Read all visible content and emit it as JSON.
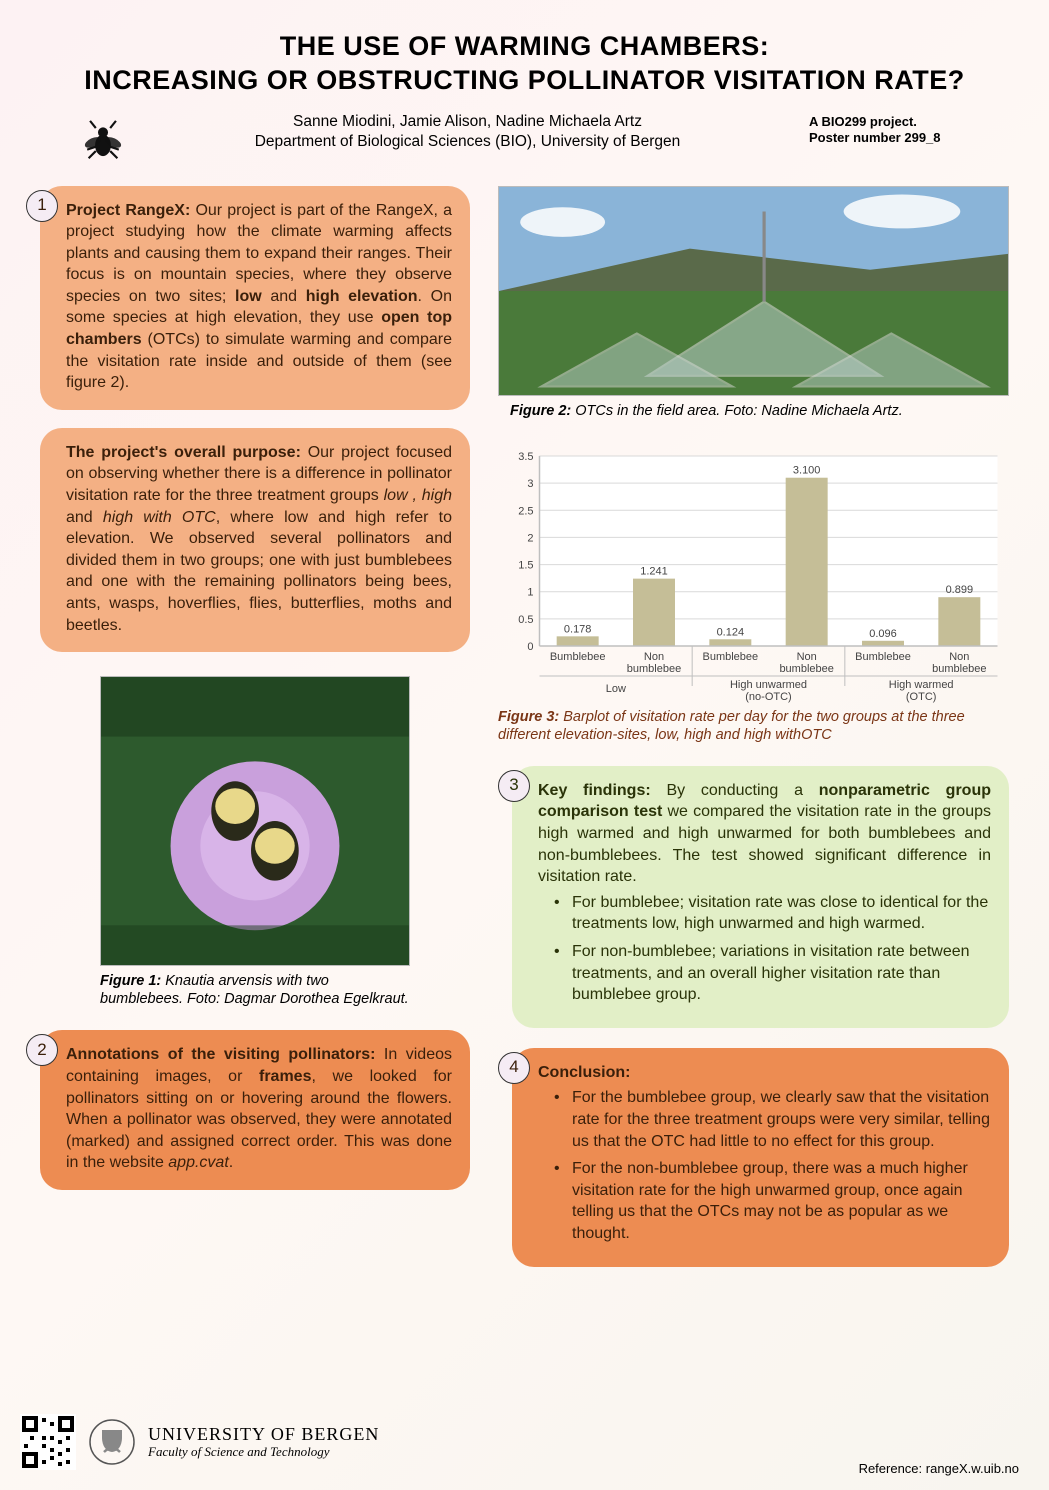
{
  "title_line1": "THE USE OF WARMING CHAMBERS:",
  "title_line2": "INCREASING OR OBSTRUCTING POLLINATOR VISITATION RATE?",
  "authors_line1": "Sanne Miodini,  Jamie Alison, Nadine Michaela Artz",
  "authors_line2": "Department of Biological Sciences (BIO), University of Bergen",
  "meta_line1": "A BIO299 project.",
  "meta_line2": "Poster number 299_8",
  "box1": {
    "num": "1",
    "heading": "Project RangeX:",
    "body": "Our project is part of the RangeX, a project studying how the climate warming affects plants and causing them to expand their ranges. Their focus is on mountain species, where they observe species on two sites; low and high elevation. On some species at high elevation, they use open top chambers (OTCs) to simulate warming and compare the visitation rate inside and outside of them (see figure 2)."
  },
  "box_purpose": {
    "heading": "The project's overall purpose:",
    "body": "Our project focused on observing whether there is a difference in pollinator visitation rate for the three treatment groups low , high and high with OTC, where low and high refer to elevation. We observed several pollinators and divided them in two groups; one with just bumblebees and one with the remaining pollinators being bees, ants, wasps, hoverflies, flies, butterflies, moths and beetles."
  },
  "fig1_caption_b": "Figure 1:",
  "fig1_caption": " Knautia arvensis with two bumblebees. Foto: Dagmar Dorothea Egelkraut.",
  "box2": {
    "num": "2",
    "heading": "Annotations of the visiting pollinators:",
    "body": "In videos containing  images, or frames, we looked for pollinators sitting on or hovering around the flowers. When a pollinator was observed, they were annotated (marked) and assigned correct order. This was done in the website app.cvat."
  },
  "fig2_caption_b": "Figure 2:",
  "fig2_caption": " OTCs in the field area. Foto: Nadine Michaela Artz.",
  "barplot": {
    "type": "bar",
    "ylim": [
      0,
      3.5
    ],
    "ytick_step": 0.5,
    "yticks": [
      "0",
      "0.5",
      "1",
      "1.5",
      "2",
      "2.5",
      "3",
      "3.5"
    ],
    "bar_color": "#c5be97",
    "grid_color": "#d9d9d9",
    "axis_color": "#bfbfbf",
    "background_color": "#ffffff",
    "label_fontsize": 11,
    "groups": [
      {
        "label": "Low",
        "bars": [
          {
            "label": "Bumblebee",
            "value": 0.178
          },
          {
            "label": "Non bumblebee",
            "value": 1.241
          }
        ]
      },
      {
        "label": "High unwarmed (no-OTC)",
        "bars": [
          {
            "label": "Bumblebee",
            "value": 0.124
          },
          {
            "label": "Non bumblebee",
            "value": 3.1
          }
        ]
      },
      {
        "label": "High warmed (OTC)",
        "bars": [
          {
            "label": "Bumblebee",
            "value": 0.096
          },
          {
            "label": "Non bumblebee",
            "value": 0.899
          }
        ]
      }
    ]
  },
  "fig3_caption_b": "Figure 3:",
  "fig3_caption": "  Barplot of visitation rate per day for the two groups at the three different elevation-sites, low, high and high withOTC",
  "box3": {
    "num": "3",
    "heading": "Key findings:",
    "intro": "By conducting a nonparametric group comparison test we compared the visitation rate in the groups high warmed and high unwarmed for both bumblebees and non-bumblebees. The test showed significant difference in visitation rate.",
    "bullets": [
      "For bumblebee; visitation rate was close to identical for the treatments low, high unwarmed and high warmed.",
      "For non-bumblebee; variations in visitation rate between treatments, and an overall higher visitation rate than bumblebee group."
    ]
  },
  "box4": {
    "num": "4",
    "heading": "Conclusion:",
    "bullets": [
      "For the bumblebee group, we clearly saw that the visitation rate for the three treatment groups were very similar, telling us that the OTC had little to no effect for this group.",
      "For the non-bumblebee group, there was a much higher visitation rate for the high unwarmed group, once again telling us that the OTCs may not be as popular as we thought."
    ]
  },
  "footer": {
    "uib_line1": "UNIVERSITY OF BERGEN",
    "uib_line2": "Faculty of Science and Technology",
    "reference": "Reference: rangeX.w.uib.no"
  }
}
